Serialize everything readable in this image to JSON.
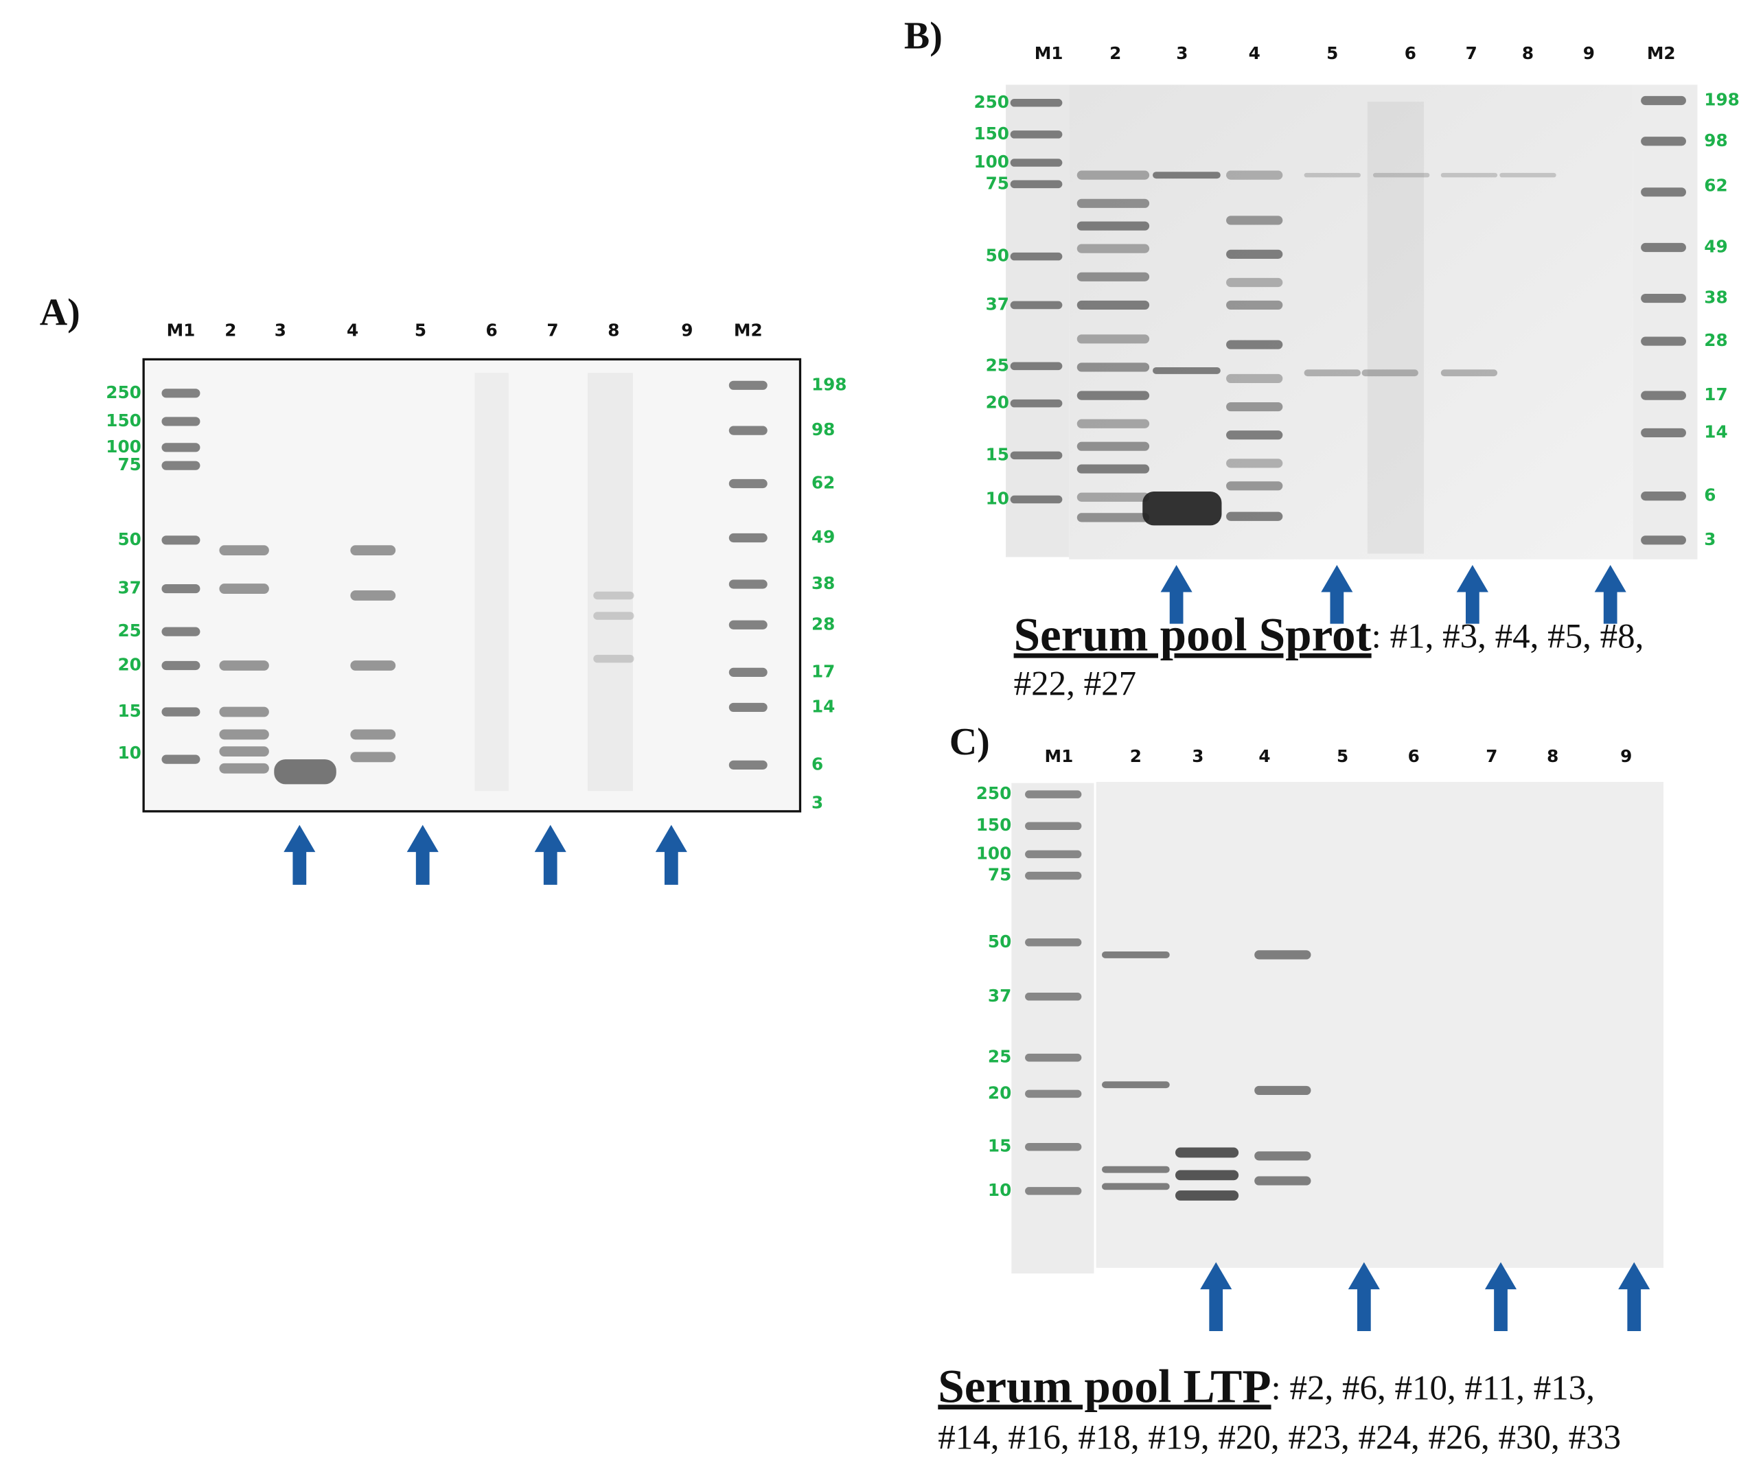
{
  "panels": [
    {
      "label": "A)",
      "lanes": [
        "M1",
        "2",
        "3",
        "4",
        "5",
        "6",
        "7",
        "8",
        "9",
        "M2"
      ],
      "left_markers": [
        "250",
        "150",
        "100",
        "75",
        "50",
        "37",
        "25",
        "20",
        "15",
        "10"
      ],
      "right_markers": [
        "198",
        "98",
        "62",
        "49",
        "38",
        "28",
        "17",
        "14",
        "6",
        "3"
      ]
    },
    {
      "label": "B)",
      "lanes": [
        "M1",
        "2",
        "3",
        "4",
        "5",
        "6",
        "7",
        "8",
        "9",
        "M2"
      ],
      "left_markers": [
        "250",
        "150",
        "100",
        "75",
        "50",
        "37",
        "25",
        "20",
        "15",
        "10"
      ],
      "right_markers": [
        "198",
        "98",
        "62",
        "49",
        "38",
        "28",
        "17",
        "14",
        "6",
        "3"
      ],
      "caption": {
        "title": "Serum pool Sprot",
        "lines": [
          ": #1, #3, #4, #5, #8,",
          "#22, #27"
        ]
      }
    },
    {
      "label": "C)",
      "lanes": [
        "M1",
        "2",
        "3",
        "4",
        "5",
        "6",
        "7",
        "8",
        "9"
      ],
      "left_markers": [
        "250",
        "150",
        "100",
        "75",
        "50",
        "37",
        "25",
        "20",
        "15",
        "10"
      ],
      "caption": {
        "title": "Serum pool LTP",
        "lines": [
          ": #2, #6, #10, #11, #13,",
          "#14, #16, #18, #19, #20, #23, #24, #26, #30, #33"
        ]
      }
    }
  ]
}
